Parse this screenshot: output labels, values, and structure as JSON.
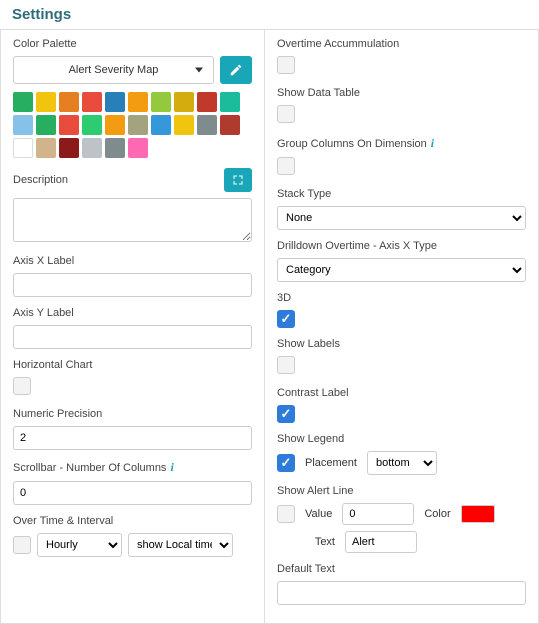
{
  "title": "Settings",
  "left": {
    "colorPalette": {
      "label": "Color Palette",
      "selected": "Alert Severity Map"
    },
    "swatches": [
      "#27ae60",
      "#f1c40f",
      "#e67e22",
      "#e74c3c",
      "#2980b9",
      "#f39c12",
      "#95c93d",
      "#d4ac0d",
      "#c0392b",
      "#1abc9c",
      "#85c1e9",
      "#27ae60",
      "#e74c3c",
      "#2ecc71",
      "#f39c12",
      "#a3a380",
      "#3498db",
      "#f1c40f",
      "#7f8c8d",
      "#b03a2e",
      "#ffffff",
      "#d2b48c",
      "#8b1a1a",
      "#bdc3c7",
      "#7f8c8d",
      "#ff69b4"
    ],
    "description": {
      "label": "Description",
      "value": ""
    },
    "axisX": {
      "label": "Axis X Label",
      "value": ""
    },
    "axisY": {
      "label": "Axis Y Label",
      "value": ""
    },
    "horizontal": {
      "label": "Horizontal Chart",
      "checked": false
    },
    "precision": {
      "label": "Numeric Precision",
      "value": "2"
    },
    "scrollbar": {
      "label": "Scrollbar - Number Of Columns",
      "value": "0"
    },
    "overtime": {
      "label": "Over Time & Interval",
      "checked": false,
      "interval": "Hourly",
      "tz": "show Local time"
    }
  },
  "right": {
    "overtimeAcc": {
      "label": "Overtime Accummulation",
      "checked": false
    },
    "showDataTable": {
      "label": "Show Data Table",
      "checked": false
    },
    "groupCols": {
      "label": "Group Columns On Dimension",
      "checked": false
    },
    "stackType": {
      "label": "Stack Type",
      "value": "None"
    },
    "drilldown": {
      "label": "Drilldown Overtime - Axis X Type",
      "value": "Category"
    },
    "threeD": {
      "label": "3D",
      "checked": true
    },
    "showLabels": {
      "label": "Show Labels",
      "checked": false
    },
    "contrast": {
      "label": "Contrast Label",
      "checked": true
    },
    "legend": {
      "label": "Show Legend",
      "checked": true,
      "placementLabel": "Placement",
      "placement": "bottom"
    },
    "alertLine": {
      "label": "Show Alert Line",
      "checked": false,
      "valueLabel": "Value",
      "value": "0",
      "colorLabel": "Color",
      "color": "#ff0000",
      "textLabel": "Text",
      "text": "Alert"
    },
    "defaultText": {
      "label": "Default Text",
      "value": ""
    }
  }
}
